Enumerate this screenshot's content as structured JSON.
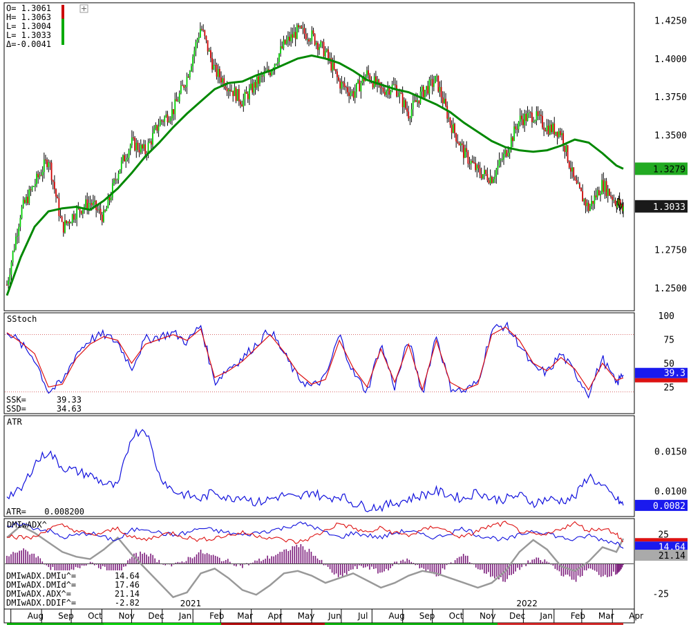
{
  "ohlc_readout": {
    "open": "O= 1.3061",
    "high": "H= 1.3063",
    "low1": "L= 1.3004",
    "low2": "L= 1.3033",
    "delta": "Δ=-0.0041"
  },
  "price_panel": {
    "yticks": [
      "1.4250",
      "1.4000",
      "1.3750",
      "1.3500",
      "1.3279",
      "1.3033",
      "1.2750",
      "1.2500"
    ],
    "ma_last": "1.3279",
    "price_last": "1.3033",
    "colors": {
      "up": "#00cc00",
      "down": "#cc0000",
      "ma": "#008800"
    }
  },
  "stoch_panel": {
    "title": "SStoch",
    "yticks": [
      "100",
      "75",
      "50",
      "25"
    ],
    "ssk_label": "SSK=",
    "ssk_value": "39.33",
    "ssd_label": "SSD=",
    "ssd_value": "34.63",
    "badge_k": "39.3",
    "colors": {
      "k": "#1010dd",
      "d": "#dd1010"
    }
  },
  "atr_panel": {
    "title": "ATR",
    "yticks": [
      "0.0150",
      "0.0100"
    ],
    "readout_label": "ATR=",
    "readout_value": "0.008200",
    "badge": "0.0082",
    "colors": {
      "line": "#1010dd"
    }
  },
  "dmi_panel": {
    "title": "DMIwADX^",
    "yticks": [
      "25",
      "-25"
    ],
    "badge_di": "14.64",
    "badge_adx": "21.14",
    "rows": [
      {
        "label": "DMIwADX.DMIu^=",
        "value": "14.64"
      },
      {
        "label": "DMIwADX.DMId^=",
        "value": "17.46"
      },
      {
        "label": "DMIwADX.ADX^=",
        "value": "21.14"
      },
      {
        "label": "DMIwADX.DDIF^=",
        "value": "-2.82"
      }
    ],
    "colors": {
      "diplus": "#1010dd",
      "diminus": "#dd1010",
      "adx": "#999999",
      "hist": "#7a1a7a"
    }
  },
  "x_axis": {
    "months": [
      "Aug",
      "Sep",
      "Oct",
      "Nov",
      "Dec",
      "Jan",
      "Feb",
      "Mar",
      "Apr",
      "May",
      "Jun",
      "Jul",
      "Aug",
      "Sep",
      "Oct",
      "Nov",
      "Dec",
      "Jan",
      "Feb",
      "Mar",
      "Apr"
    ],
    "years": [
      "2021",
      "2022"
    ]
  },
  "chart_data": {
    "type": "line",
    "title": "",
    "x": [
      "2020-07-28",
      "2020-08-11",
      "2020-08-25",
      "2020-09-08",
      "2020-09-22",
      "2020-10-06",
      "2020-10-20",
      "2020-11-03",
      "2020-11-17",
      "2020-12-01",
      "2020-12-15",
      "2020-12-29",
      "2021-01-12",
      "2021-01-26",
      "2021-02-09",
      "2021-02-23",
      "2021-03-09",
      "2021-03-23",
      "2021-04-06",
      "2021-04-20",
      "2021-05-04",
      "2021-05-18",
      "2021-06-01",
      "2021-06-15",
      "2021-06-29",
      "2021-07-13",
      "2021-07-27",
      "2021-08-10",
      "2021-08-24",
      "2021-09-07",
      "2021-09-21",
      "2021-10-05",
      "2021-10-19",
      "2021-11-02",
      "2021-11-16",
      "2021-11-30",
      "2021-12-14",
      "2021-12-28",
      "2022-01-11",
      "2022-01-25",
      "2022-02-08",
      "2022-02-22",
      "2022-03-08",
      "2022-03-22",
      "2022-04-05",
      "2022-04-12"
    ],
    "series": [
      {
        "values": [
          1.252,
          1.3,
          1.318,
          1.335,
          1.289,
          1.3,
          1.306,
          1.296,
          1.326,
          1.345,
          1.339,
          1.358,
          1.366,
          1.388,
          1.421,
          1.392,
          1.382,
          1.372,
          1.384,
          1.392,
          1.409,
          1.418,
          1.415,
          1.404,
          1.384,
          1.377,
          1.39,
          1.379,
          1.382,
          1.364,
          1.378,
          1.386,
          1.358,
          1.338,
          1.326,
          1.322,
          1.338,
          1.36,
          1.363,
          1.355,
          1.352,
          1.318,
          1.302,
          1.318,
          1.306,
          1.303
        ]
      },
      {
        "values": [
          1.245,
          1.27,
          1.29,
          1.3,
          1.302,
          1.303,
          1.301,
          1.307,
          1.315,
          1.325,
          1.336,
          1.345,
          1.355,
          1.364,
          1.372,
          1.38,
          1.384,
          1.385,
          1.389,
          1.392,
          1.396,
          1.4,
          1.402,
          1.4,
          1.397,
          1.392,
          1.386,
          1.383,
          1.38,
          1.378,
          1.374,
          1.37,
          1.365,
          1.358,
          1.352,
          1.346,
          1.342,
          1.34,
          1.339,
          1.34,
          1.343,
          1.347,
          1.345,
          1.338,
          1.33,
          1.3279
        ]
      }
    ],
    "ylim": [
      1.235,
      1.4365
    ],
    "grid": false,
    "legend": "none"
  },
  "stoch_data": {
    "k": [
      85,
      70,
      55,
      20,
      30,
      60,
      75,
      80,
      72,
      45,
      75,
      78,
      82,
      72,
      90,
      30,
      45,
      55,
      70,
      85,
      60,
      35,
      25,
      35,
      80,
      40,
      20,
      70,
      25,
      75,
      18,
      80,
      25,
      20,
      30,
      85,
      90,
      70,
      45,
      40,
      60,
      40,
      18,
      55,
      28,
      39.33
    ],
    "d": [
      82,
      72,
      60,
      25,
      28,
      55,
      70,
      78,
      74,
      50,
      70,
      75,
      80,
      74,
      86,
      35,
      42,
      52,
      66,
      80,
      62,
      40,
      28,
      33,
      74,
      45,
      25,
      65,
      30,
      70,
      22,
      74,
      30,
      22,
      28,
      80,
      88,
      74,
      50,
      42,
      56,
      44,
      22,
      50,
      32,
      34.63
    ],
    "ylim": [
      0,
      100
    ]
  },
  "atr_data": {
    "values": [
      0.0095,
      0.01,
      0.0135,
      0.015,
      0.013,
      0.0125,
      0.012,
      0.011,
      0.0105,
      0.017,
      0.018,
      0.012,
      0.01,
      0.0095,
      0.009,
      0.01,
      0.009,
      0.0095,
      0.0085,
      0.009,
      0.0095,
      0.009,
      0.01,
      0.009,
      0.0095,
      0.0085,
      0.008,
      0.008,
      0.0085,
      0.009,
      0.0095,
      0.01,
      0.0095,
      0.009,
      0.01,
      0.009,
      0.009,
      0.0095,
      0.0085,
      0.009,
      0.0088,
      0.0092,
      0.012,
      0.0105,
      0.009,
      0.0082
    ],
    "ylim": [
      0.0068,
      0.0195
    ]
  },
  "dmi_data": {
    "diplus": [
      30,
      34,
      30,
      28,
      22,
      24,
      26,
      22,
      20,
      28,
      30,
      26,
      24,
      26,
      30,
      28,
      26,
      24,
      26,
      28,
      30,
      34,
      32,
      26,
      22,
      26,
      24,
      22,
      26,
      28,
      24,
      22,
      26,
      30,
      24,
      22,
      20,
      24,
      28,
      26,
      22,
      20,
      24,
      20,
      18,
      14.64
    ],
    "diminus": [
      24,
      22,
      22,
      30,
      32,
      28,
      24,
      26,
      30,
      22,
      20,
      24,
      26,
      22,
      20,
      22,
      24,
      26,
      24,
      22,
      20,
      18,
      22,
      28,
      34,
      30,
      26,
      30,
      26,
      24,
      28,
      32,
      26,
      22,
      28,
      32,
      34,
      28,
      24,
      24,
      30,
      34,
      28,
      30,
      26,
      17.46
    ],
    "adx": [
      22,
      32,
      26,
      18,
      10,
      6,
      4,
      12,
      22,
      8,
      -4,
      -16,
      -28,
      -24,
      -8,
      -4,
      -12,
      -22,
      -26,
      -18,
      -8,
      -6,
      -10,
      -16,
      -12,
      -8,
      -14,
      -20,
      -16,
      -10,
      -6,
      -8,
      -12,
      -16,
      -20,
      -16,
      -6,
      10,
      20,
      12,
      -2,
      -6,
      2,
      14,
      10,
      21.14
    ],
    "ddif": [
      6,
      12,
      8,
      -2,
      -10,
      -4,
      2,
      -4,
      -10,
      6,
      10,
      2,
      -2,
      4,
      10,
      6,
      2,
      -2,
      2,
      6,
      10,
      16,
      10,
      -2,
      -12,
      -4,
      -2,
      -8,
      0,
      4,
      -4,
      -10,
      0,
      8,
      -4,
      -10,
      -14,
      -4,
      4,
      2,
      -8,
      -14,
      -4,
      -10,
      -8,
      -2.82
    ],
    "ylim": [
      -38,
      38
    ]
  }
}
